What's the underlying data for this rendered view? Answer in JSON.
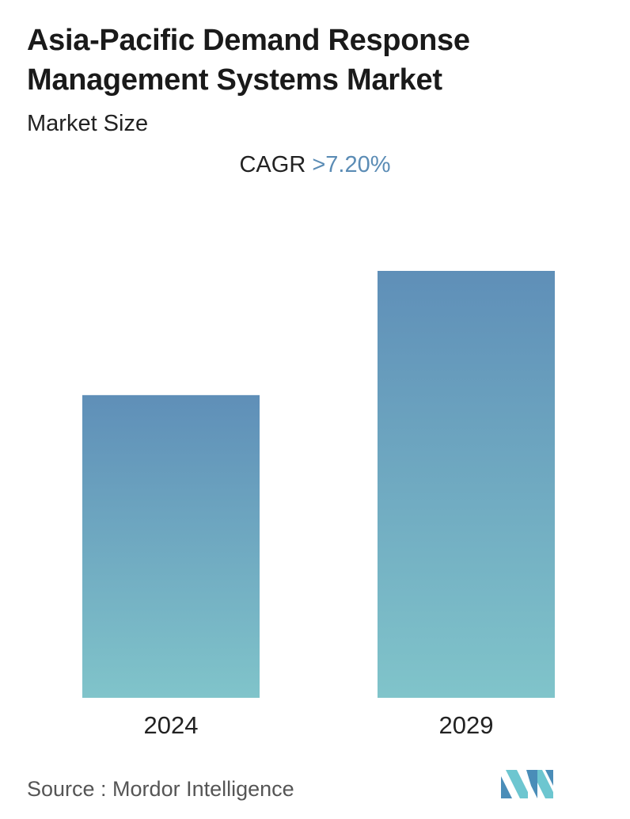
{
  "header": {
    "title": "Asia-Pacific Demand Response Management Systems Market",
    "subtitle": "Market Size"
  },
  "cagr": {
    "label": "CAGR",
    "value": ">7.20%"
  },
  "chart_data": {
    "type": "bar",
    "title": "Asia-Pacific Demand Response Management Systems Market",
    "subtitle": "Market Size",
    "categories": [
      "2024",
      "2029"
    ],
    "values": [
      70.9,
      100
    ],
    "ylim": [
      0,
      100
    ],
    "grid": false,
    "legend": "none",
    "colors": {
      "bar_top": "#5f8fb8",
      "bar_bottom": "#80c4ca"
    }
  },
  "footer": {
    "source": "Source :  Mordor Intelligence",
    "logo_icon": "mordor-intelligence-logo-icon",
    "logo_colors": [
      "#4a8db8",
      "#6dc6d0"
    ]
  }
}
